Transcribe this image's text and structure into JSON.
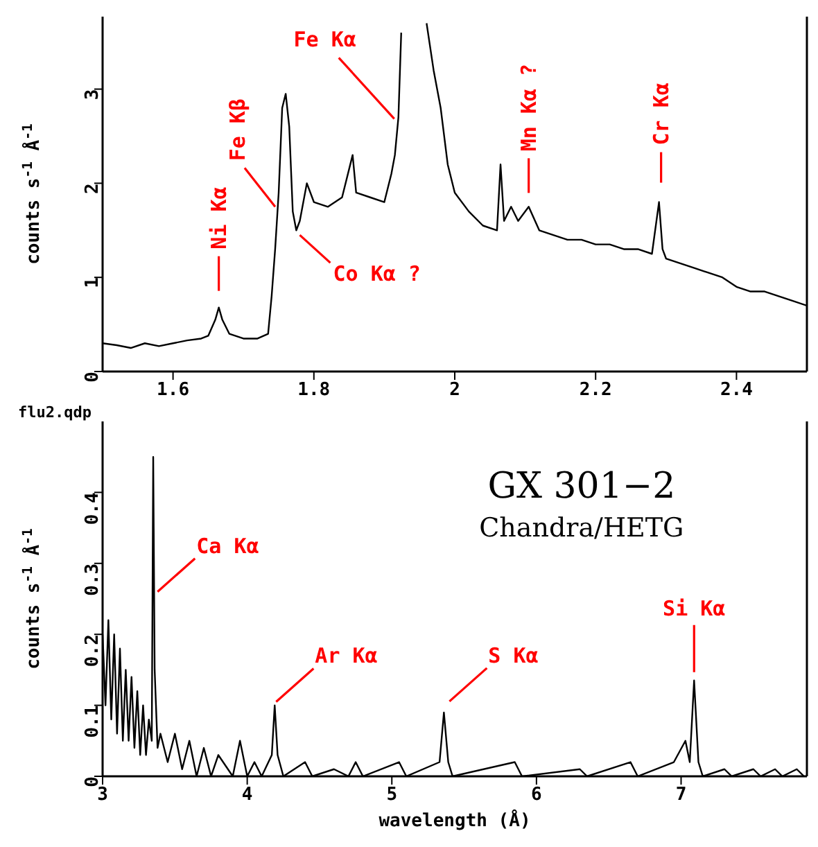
{
  "chart_data": [
    {
      "type": "line",
      "ylabel": "counts s$^{-1}$ Å$^{-1}$",
      "xlim": [
        1.5,
        2.5
      ],
      "xticks": [
        1.6,
        1.8,
        2,
        2.2,
        2.4
      ],
      "ylim": [
        0,
        3.77
      ],
      "yticks": [
        0,
        1,
        2,
        3
      ],
      "series": [
        {
          "color": "#000000",
          "x": [
            1.5,
            1.52,
            1.54,
            1.56,
            1.58,
            1.6,
            1.62,
            1.64,
            1.65,
            1.66,
            1.665,
            1.67,
            1.68,
            1.7,
            1.72,
            1.735,
            1.74,
            1.745,
            1.75,
            1.755,
            1.76,
            1.765,
            1.77,
            1.775,
            1.78,
            1.79,
            1.8,
            1.82,
            1.84,
            1.855,
            1.86,
            1.88,
            1.9,
            1.91,
            1.915,
            1.92,
            1.924,
            1.94,
            1.96,
            1.97,
            1.98,
            1.99,
            2.0,
            2.02,
            2.04,
            2.06,
            2.065,
            2.07,
            2.08,
            2.09,
            2.105,
            2.12,
            2.14,
            2.16,
            2.18,
            2.2,
            2.22,
            2.24,
            2.26,
            2.28,
            2.29,
            2.295,
            2.3,
            2.32,
            2.34,
            2.36,
            2.38,
            2.4,
            2.42,
            2.44,
            2.46,
            2.48,
            2.5
          ],
          "values": [
            0.3,
            0.28,
            0.25,
            0.3,
            0.27,
            0.3,
            0.33,
            0.35,
            0.38,
            0.55,
            0.68,
            0.55,
            0.4,
            0.35,
            0.35,
            0.4,
            0.8,
            1.3,
            1.9,
            2.8,
            2.95,
            2.6,
            1.7,
            1.5,
            1.6,
            2.0,
            1.8,
            1.75,
            1.85,
            2.3,
            1.9,
            1.85,
            1.8,
            2.1,
            2.3,
            2.7,
            3.6,
            null,
            3.7,
            3.2,
            2.8,
            2.2,
            1.9,
            1.7,
            1.55,
            1.5,
            2.2,
            1.6,
            1.75,
            1.6,
            1.75,
            1.5,
            1.45,
            1.4,
            1.4,
            1.35,
            1.35,
            1.3,
            1.3,
            1.25,
            1.8,
            1.3,
            1.2,
            1.15,
            1.1,
            1.05,
            1.0,
            0.9,
            0.85,
            0.85,
            0.8,
            0.75,
            0.7
          ]
        }
      ],
      "annotations": [
        {
          "text": "Ni Kα",
          "x": 1.665,
          "y": 0.68
        },
        {
          "text": "Fe Kβ",
          "x": 1.745,
          "y": 1.75
        },
        {
          "text": "Fe Kα",
          "x": 1.92,
          "y": 2.7
        },
        {
          "text": "Co Kα ?",
          "x": 1.78,
          "y": 1.45
        },
        {
          "text": "Mn Kα ?",
          "x": 2.105,
          "y": 1.75
        },
        {
          "text": "Cr Kα",
          "x": 2.29,
          "y": 1.8
        },
        "flu2.qdp"
      ]
    },
    {
      "type": "line",
      "xlabel": "wavelength (Å)",
      "ylabel": "counts s$^{-1}$ Å$^{-1}$",
      "xlim": [
        3,
        7.87
      ],
      "xticks": [
        3,
        4,
        5,
        6,
        7
      ],
      "ylim": [
        0,
        0.5
      ],
      "yticks": [
        0,
        0.1,
        0.2,
        0.3,
        0.4
      ],
      "series": [
        {
          "color": "#000000",
          "x": [
            3.0,
            3.02,
            3.04,
            3.06,
            3.08,
            3.1,
            3.12,
            3.14,
            3.16,
            3.18,
            3.2,
            3.22,
            3.24,
            3.26,
            3.28,
            3.3,
            3.32,
            3.34,
            3.35,
            3.36,
            3.38,
            3.4,
            3.45,
            3.5,
            3.55,
            3.6,
            3.65,
            3.7,
            3.75,
            3.8,
            3.9,
            3.95,
            4.0,
            4.05,
            4.1,
            4.17,
            4.19,
            4.21,
            4.25,
            4.4,
            4.45,
            4.6,
            4.7,
            4.75,
            4.8,
            5.05,
            5.1,
            5.33,
            5.36,
            5.39,
            5.42,
            5.85,
            5.9,
            6.3,
            6.35,
            6.65,
            6.7,
            6.95,
            7.03,
            7.06,
            7.09,
            7.12,
            7.15,
            7.3,
            7.35,
            7.5,
            7.55,
            7.65,
            7.7,
            7.8,
            7.85
          ],
          "values": [
            0.2,
            0.1,
            0.22,
            0.08,
            0.2,
            0.06,
            0.18,
            0.05,
            0.15,
            0.05,
            0.14,
            0.04,
            0.12,
            0.03,
            0.1,
            0.03,
            0.08,
            0.05,
            0.45,
            0.15,
            0.04,
            0.06,
            0.02,
            0.06,
            0.01,
            0.05,
            0,
            0.04,
            0,
            0.03,
            0,
            0.05,
            0,
            0.02,
            0,
            0.03,
            0.1,
            0.03,
            0,
            0.02,
            0,
            0.01,
            0,
            0.02,
            0,
            0.02,
            0,
            0.02,
            0.09,
            0.02,
            0,
            0.02,
            0,
            0.01,
            0,
            0.02,
            0,
            0.02,
            0.05,
            0.02,
            0.135,
            0.02,
            0,
            0.01,
            0,
            0.01,
            0,
            0.01,
            0,
            0.01,
            0
          ]
        }
      ],
      "annotations": [
        {
          "text": "Ca Kα",
          "x": 3.38,
          "y": 0.26
        },
        {
          "text": "Ar Kα",
          "x": 4.2,
          "y": 0.105
        },
        {
          "text": "S Kα",
          "x": 5.36,
          "y": 0.09
        },
        {
          "text": "Si Kα",
          "x": 7.09,
          "y": 0.135
        },
        "GX 301−2",
        "Chandra/HETG"
      ]
    }
  ]
}
